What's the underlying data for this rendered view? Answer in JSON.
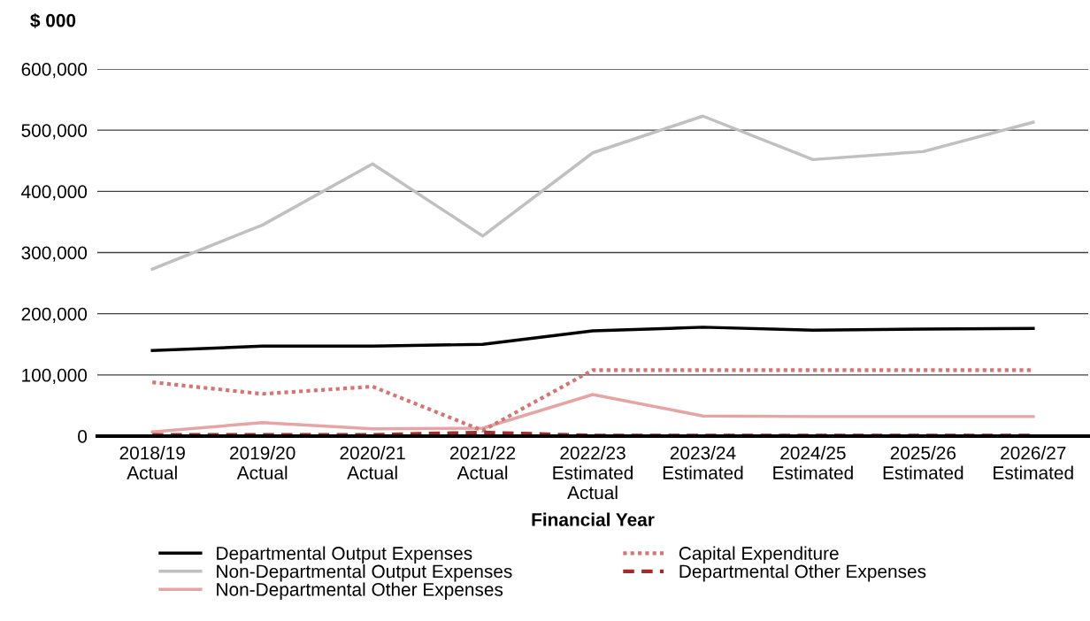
{
  "chart_data": {
    "type": "line",
    "ylabel": "$ 000",
    "xlabel": "Financial Year",
    "categories": [
      "2018/19\nActual",
      "2019/20\nActual",
      "2020/21\nActual",
      "2021/22\nActual",
      "2022/23\nEstimated\nActual",
      "2023/24\nEstimated",
      "2024/25\nEstimated",
      "2025/26\nEstimated",
      "2026/27\nEstimated"
    ],
    "series": [
      {
        "name": "Departmental Output Expenses",
        "color": "#000000",
        "line_style": "solid",
        "values": [
          140000,
          147000,
          147000,
          150000,
          172000,
          178000,
          173000,
          175000,
          176000
        ]
      },
      {
        "name": "Non-Departmental Output Expenses",
        "color": "#c0c0c0",
        "line_style": "solid",
        "values": [
          273000,
          345000,
          445000,
          327000,
          463000,
          523000,
          452000,
          465000,
          513000
        ]
      },
      {
        "name": "Non-Departmental Other Expenses",
        "color": "#e6a5a5",
        "line_style": "solid",
        "values": [
          7000,
          22000,
          12000,
          13000,
          68000,
          33000,
          32000,
          32000,
          32000
        ]
      },
      {
        "name": "Capital Expenditure",
        "color": "#d47474",
        "line_style": "dotted",
        "values": [
          88000,
          69000,
          81000,
          9000,
          108000,
          108000,
          108000,
          108000,
          108000
        ]
      },
      {
        "name": "Departmental Other Expenses",
        "color": "#a52a2a",
        "line_style": "dashed",
        "values": [
          2000,
          2000,
          2000,
          6000,
          1000,
          1000,
          1000,
          1000,
          1000
        ]
      }
    ],
    "ylim": [
      0,
      600000
    ],
    "yticks": [
      {
        "value": 0,
        "label": "0"
      },
      {
        "value": 100000,
        "label": "100,000"
      },
      {
        "value": 200000,
        "label": "200,000"
      },
      {
        "value": 300000,
        "label": "300,000"
      },
      {
        "value": 400000,
        "label": "400,000"
      },
      {
        "value": 500000,
        "label": "500,000"
      },
      {
        "value": 600000,
        "label": "600,000"
      }
    ],
    "grid": "y",
    "legend": "bottom",
    "marker": "none"
  }
}
